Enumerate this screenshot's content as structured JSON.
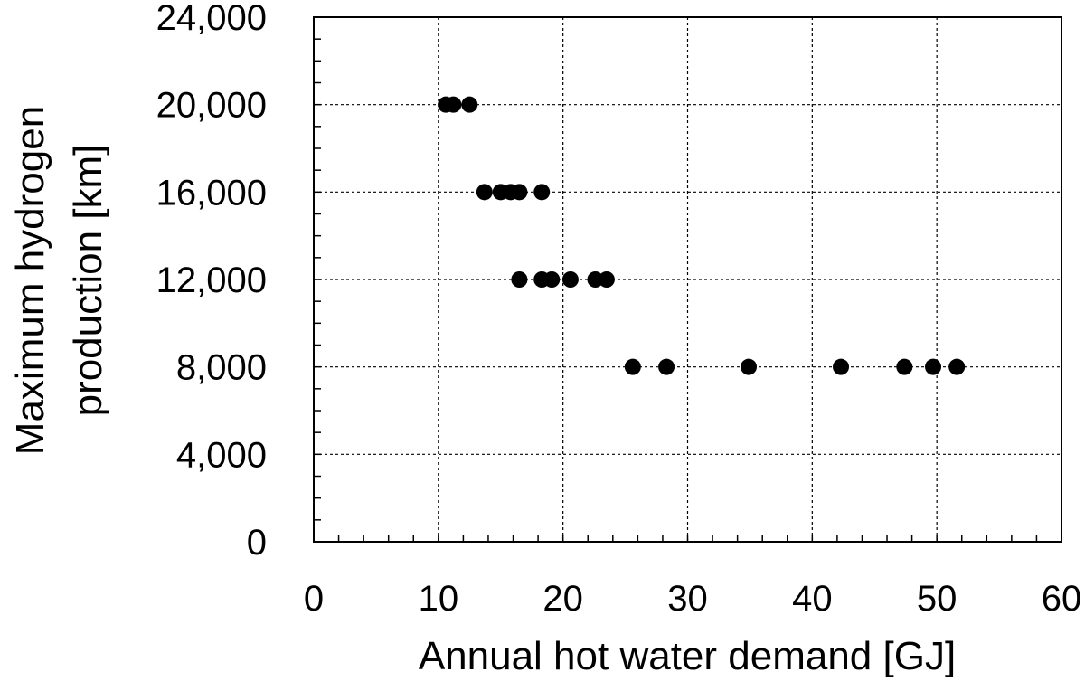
{
  "chart_data": {
    "type": "scatter",
    "title": "",
    "xlabel": "Annual hot water demand [GJ]",
    "ylabel_lines": [
      "Maximum hydrogen",
      "production [km]"
    ],
    "xlim": [
      0,
      60
    ],
    "ylim": [
      0,
      24000
    ],
    "x_ticks": [
      0,
      10,
      20,
      30,
      40,
      50,
      60
    ],
    "x_tick_labels": [
      "0",
      "10",
      "20",
      "30",
      "40",
      "50",
      "60"
    ],
    "y_ticks": [
      0,
      4000,
      8000,
      12000,
      16000,
      20000,
      24000
    ],
    "y_tick_labels": [
      "0",
      "4,000",
      "8,000",
      "12,000",
      "16,000",
      "20,000",
      "24,000"
    ],
    "grid": true,
    "legend": "none",
    "marker_color": "#000000",
    "series": [
      {
        "points": [
          {
            "x": 10.6,
            "y": 20000
          },
          {
            "x": 11.2,
            "y": 20000
          },
          {
            "x": 12.5,
            "y": 20000
          },
          {
            "x": 13.7,
            "y": 16000
          },
          {
            "x": 15.0,
            "y": 16000
          },
          {
            "x": 15.8,
            "y": 16000
          },
          {
            "x": 16.5,
            "y": 16000
          },
          {
            "x": 18.3,
            "y": 16000
          },
          {
            "x": 16.5,
            "y": 12000
          },
          {
            "x": 18.3,
            "y": 12000
          },
          {
            "x": 19.1,
            "y": 12000
          },
          {
            "x": 20.6,
            "y": 12000
          },
          {
            "x": 22.6,
            "y": 12000
          },
          {
            "x": 23.5,
            "y": 12000
          },
          {
            "x": 25.6,
            "y": 8000
          },
          {
            "x": 28.3,
            "y": 8000
          },
          {
            "x": 34.9,
            "y": 8000
          },
          {
            "x": 42.3,
            "y": 8000
          },
          {
            "x": 47.4,
            "y": 8000
          },
          {
            "x": 49.7,
            "y": 8000
          },
          {
            "x": 51.6,
            "y": 8000
          }
        ]
      }
    ]
  }
}
